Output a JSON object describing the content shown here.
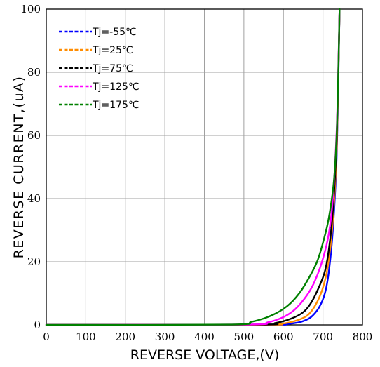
{
  "chart_data": {
    "type": "line",
    "title": "",
    "xlabel": "REVERSE VOLTAGE,(V)",
    "ylabel": "REVERSE CURRENT,(uA)",
    "xlim": [
      0,
      800
    ],
    "ylim": [
      0,
      100
    ],
    "xticks": [
      0,
      100,
      200,
      300,
      400,
      500,
      600,
      700,
      800
    ],
    "yticks": [
      0,
      20,
      40,
      60,
      80,
      100
    ],
    "grid": true,
    "legend_position": "top-left",
    "series": [
      {
        "name": "Tj=-55℃",
        "color": "#0000ff",
        "x": [
          0,
          550,
          600,
          630,
          650,
          670,
          690,
          705,
          715,
          725,
          735,
          742
        ],
        "y": [
          0,
          0.05,
          0.2,
          0.6,
          1.2,
          2.5,
          5.5,
          10,
          17,
          30,
          55,
          100
        ]
      },
      {
        "name": "Tj=25℃",
        "color": "#ff8c00",
        "x": [
          0,
          540,
          590,
          620,
          650,
          670,
          690,
          705,
          715,
          725,
          735,
          742
        ],
        "y": [
          0,
          0.05,
          0.3,
          0.9,
          2.2,
          4.2,
          8.5,
          14,
          21,
          33,
          57,
          100
        ]
      },
      {
        "name": "Tj=75℃",
        "color": "#000000",
        "x": [
          0,
          530,
          580,
          620,
          650,
          670,
          690,
          705,
          715,
          725,
          735,
          742
        ],
        "y": [
          0,
          0.1,
          0.6,
          2,
          4,
          7,
          12,
          17,
          24,
          36,
          60,
          100
        ]
      },
      {
        "name": "Tj=125℃",
        "color": "#ff00ff",
        "x": [
          0,
          500,
          560,
          600,
          630,
          660,
          680,
          700,
          715,
          725,
          735,
          742
        ],
        "y": [
          0,
          0.1,
          0.8,
          2.5,
          5,
          9.5,
          14,
          21,
          29,
          40,
          63,
          100
        ]
      },
      {
        "name": "Tj=175℃",
        "color": "#008000",
        "x": [
          0,
          460,
          520,
          570,
          610,
          640,
          665,
          685,
          700,
          715,
          728,
          736,
          742
        ],
        "y": [
          0,
          0.1,
          1,
          3,
          6,
          10,
          15,
          20,
          26,
          34,
          46,
          65,
          100
        ]
      }
    ]
  }
}
